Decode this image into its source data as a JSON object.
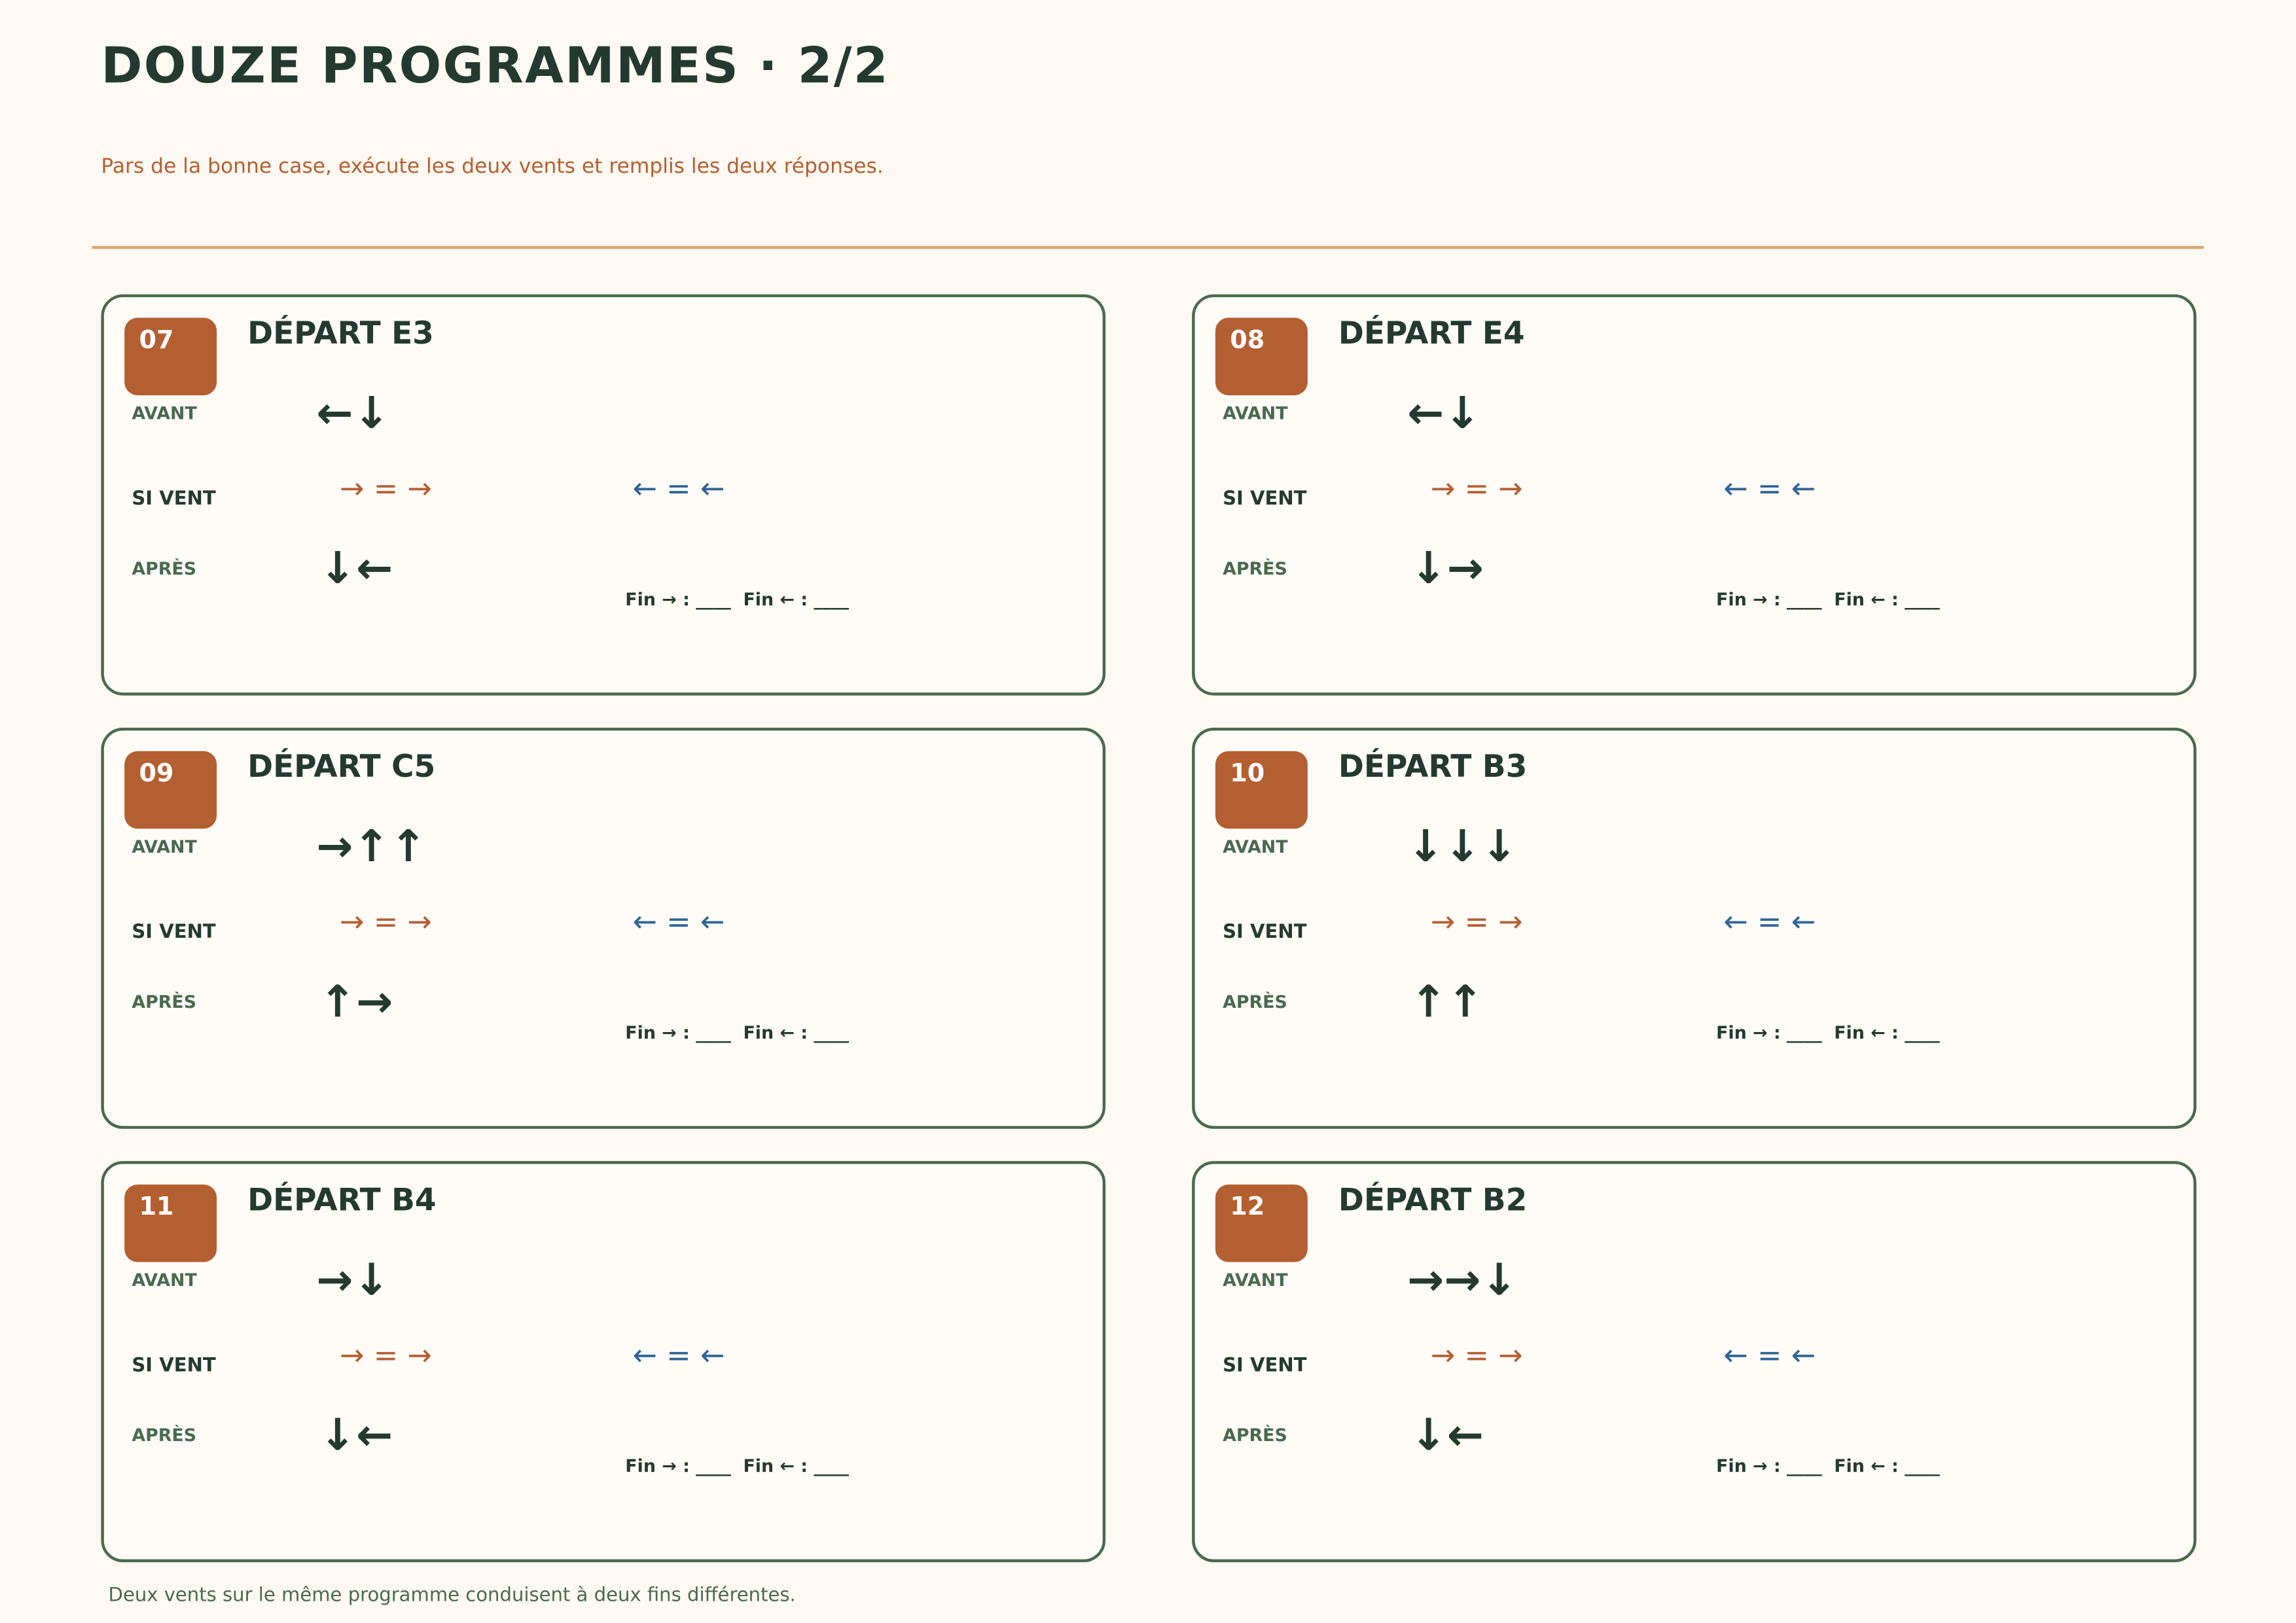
{
  "header": {
    "title": "DOUZE PROGRAMMES · 2/2",
    "subtitle": "Pars de la bonne case, exécute les deux vents et remplis les deux réponses."
  },
  "cards": [
    {
      "number": "07",
      "title": "DÉPART E3",
      "avant_label": "AVANT",
      "avant": "←↓",
      "vent_label": "SI VENT",
      "vent_right": "→ = →",
      "vent_left": "← = ←",
      "apres_label": "APRÈS",
      "apres": "↓←",
      "fin": "Fin → : ____  Fin ← : ____"
    },
    {
      "number": "08",
      "title": "DÉPART E4",
      "avant_label": "AVANT",
      "avant": "←↓",
      "vent_label": "SI VENT",
      "vent_right": "→ = →",
      "vent_left": "← = ←",
      "apres_label": "APRÈS",
      "apres": "↓→",
      "fin": "Fin → : ____  Fin ← : ____"
    },
    {
      "number": "09",
      "title": "DÉPART C5",
      "avant_label": "AVANT",
      "avant": "→↑↑",
      "vent_label": "SI VENT",
      "vent_right": "→ = →",
      "vent_left": "← = ←",
      "apres_label": "APRÈS",
      "apres": "↑→",
      "fin": "Fin → : ____  Fin ← : ____"
    },
    {
      "number": "10",
      "title": "DÉPART B3",
      "avant_label": "AVANT",
      "avant": "↓↓↓",
      "vent_label": "SI VENT",
      "vent_right": "→ = →",
      "vent_left": "← = ←",
      "apres_label": "APRÈS",
      "apres": "↑↑",
      "fin": "Fin → : ____  Fin ← : ____"
    },
    {
      "number": "11",
      "title": "DÉPART B4",
      "avant_label": "AVANT",
      "avant": "→↓",
      "vent_label": "SI VENT",
      "vent_right": "→ = →",
      "vent_left": "← = ←",
      "apres_label": "APRÈS",
      "apres": "↓←",
      "fin": "Fin → : ____  Fin ← : ____"
    },
    {
      "number": "12",
      "title": "DÉPART B2",
      "avant_label": "AVANT",
      "avant": "→→↓",
      "vent_label": "SI VENT",
      "vent_right": "→ = →",
      "vent_left": "← = ←",
      "apres_label": "APRÈS",
      "apres": "↓←",
      "fin": "Fin → : ____  Fin ← : ____"
    }
  ],
  "footer": "Deux vents sur le même programme conduisent à deux fins différentes."
}
